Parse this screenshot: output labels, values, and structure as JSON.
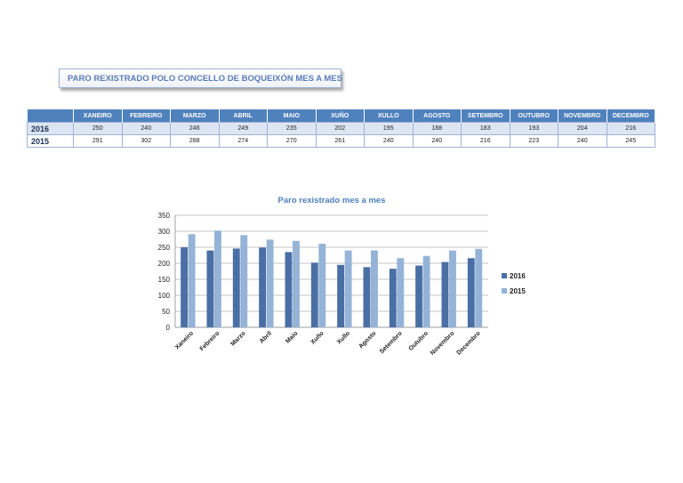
{
  "header": {
    "title": "PARO REXISTRADO POLO CONCELLO DE BOQUEIXÓN MES A MES"
  },
  "table": {
    "columns": [
      "XANEIRO",
      "FEBREIRO",
      "MARZO",
      "ABRIL",
      "MAIO",
      "XUÑO",
      "XULLO",
      "AGOSTO",
      "SETEMBRO",
      "OUTUBRO",
      "NOVEMBRO",
      "DECEMBRO"
    ],
    "rows": [
      {
        "label": "2016",
        "values": [
          "250",
          "240",
          "246",
          "249",
          "235",
          "202",
          "195",
          "188",
          "183",
          "193",
          "204",
          "216"
        ]
      },
      {
        "label": "2015",
        "values": [
          "291",
          "302",
          "288",
          "274",
          "270",
          "261",
          "240",
          "240",
          "216",
          "223",
          "240",
          "245"
        ]
      }
    ]
  },
  "chart_data": {
    "type": "bar",
    "title": "Paro rexistrado mes a mes",
    "categories": [
      "Xaneiro",
      "Febreiro",
      "Marzo",
      "Abril",
      "Maio",
      "Xuño",
      "Xullo",
      "Agosto",
      "Setembro",
      "Outubro",
      "Novembro",
      "Decembro"
    ],
    "series": [
      {
        "name": "2016",
        "values": [
          250,
          240,
          246,
          249,
          235,
          202,
          195,
          188,
          183,
          193,
          204,
          216
        ],
        "color": "#4a6fa5"
      },
      {
        "name": "2015",
        "values": [
          291,
          302,
          288,
          274,
          270,
          261,
          240,
          240,
          216,
          223,
          240,
          245
        ],
        "color": "#95b3d7"
      }
    ],
    "ylim": [
      0,
      350
    ],
    "yticks": [
      0,
      50,
      100,
      150,
      200,
      250,
      300,
      350
    ],
    "xlabel": "",
    "ylabel": "",
    "grid": true,
    "legend": "right"
  },
  "colors": {
    "title_text": "#5a7db6",
    "header_bg": "#4f81bd",
    "row_alt": "#dce6f2"
  }
}
